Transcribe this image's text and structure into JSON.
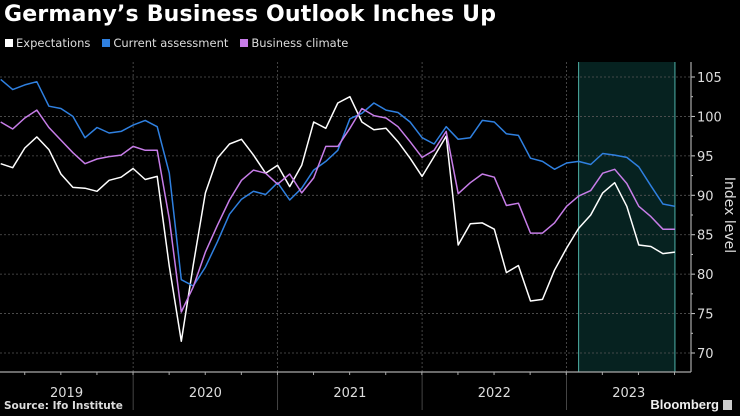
{
  "chart_data": {
    "type": "line",
    "title": "Germany’s Business Outlook Inches Up",
    "ylabel": "Index level",
    "xlabel": "",
    "x_start": "2019-01",
    "x_end": "2023-09",
    "x_frequency": "monthly",
    "x_tick_labels": [
      "2019",
      "2020",
      "2021",
      "2022",
      "2023"
    ],
    "ylim": [
      70,
      107
    ],
    "y_ticks": [
      70,
      75,
      80,
      85,
      90,
      95,
      100,
      105
    ],
    "y_axis_position": "right",
    "grid": true,
    "legend_position": "top-left",
    "shaded_region": {
      "from": "2023-01",
      "to": "2023-09",
      "color": "#062220",
      "edge_color": "#4fb3a9"
    },
    "series": [
      {
        "name": "Expectations",
        "color": "#ffffff",
        "values": [
          94.0,
          93.5,
          96.0,
          97.4,
          95.8,
          92.7,
          91.0,
          90.9,
          90.5,
          91.9,
          92.3,
          93.4,
          92.0,
          92.4,
          81.0,
          71.5,
          81.2,
          90.3,
          94.7,
          96.5,
          97.1,
          95.1,
          92.8,
          93.8,
          91.1,
          93.8,
          99.3,
          98.5,
          101.7,
          102.5,
          99.3,
          98.3,
          98.5,
          96.8,
          94.7,
          92.4,
          94.9,
          97.5,
          83.7,
          86.4,
          86.5,
          85.7,
          80.2,
          81.1,
          76.6,
          76.8,
          80.5,
          83.3,
          85.8,
          87.5,
          90.3,
          91.6,
          88.6,
          83.7,
          83.5,
          82.6,
          82.8
        ]
      },
      {
        "name": "Current assessment",
        "color": "#2f80e0",
        "values": [
          104.7,
          103.4,
          104.0,
          104.4,
          101.3,
          101.0,
          100.0,
          97.3,
          98.6,
          97.9,
          98.1,
          98.9,
          99.5,
          98.7,
          92.8,
          79.3,
          78.5,
          80.9,
          84.1,
          87.6,
          89.5,
          90.5,
          90.1,
          91.6,
          89.4,
          90.9,
          93.2,
          94.3,
          95.7,
          99.7,
          100.4,
          101.7,
          100.8,
          100.5,
          99.3,
          97.3,
          96.5,
          98.7,
          97.1,
          97.3,
          99.5,
          99.3,
          97.8,
          97.6,
          94.7,
          94.3,
          93.3,
          94.1,
          94.3,
          93.9,
          95.3,
          95.1,
          94.8,
          93.6,
          91.2,
          88.9,
          88.6
        ]
      },
      {
        "name": "Business climate",
        "color": "#c77de8",
        "values": [
          99.3,
          98.4,
          99.8,
          100.8,
          98.6,
          97.0,
          95.4,
          94.0,
          94.6,
          94.9,
          95.1,
          96.2,
          95.7,
          95.7,
          87.0,
          75.2,
          78.4,
          82.8,
          86.2,
          89.4,
          91.9,
          93.2,
          92.8,
          91.4,
          92.7,
          90.3,
          92.2,
          96.2,
          96.2,
          98.5,
          101.0,
          100.1,
          99.8,
          98.7,
          96.8,
          94.8,
          95.7,
          98.1,
          90.2,
          91.6,
          92.7,
          92.3,
          88.7,
          89.0,
          85.2,
          85.2,
          86.5,
          88.6,
          89.9,
          90.6,
          92.8,
          93.3,
          91.5,
          88.6,
          87.3,
          85.7,
          85.7
        ]
      }
    ]
  },
  "footer": {
    "source": "Source: Ifo Institute",
    "brand": "Bloomberg"
  }
}
